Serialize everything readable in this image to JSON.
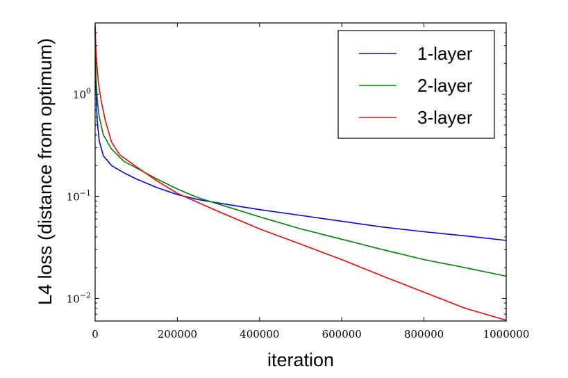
{
  "chart_data": {
    "type": "line",
    "title": "",
    "xlabel": "iteration",
    "ylabel": "L4 loss (distance from optimum)",
    "xlim": [
      0,
      1000000
    ],
    "ylim": [
      0.006,
      5.0
    ],
    "yscale": "log",
    "grid": false,
    "legend_position": "top-right",
    "x_ticks": [
      {
        "value": 0,
        "label": "0"
      },
      {
        "value": 200000,
        "label": "200000"
      },
      {
        "value": 400000,
        "label": "400000"
      },
      {
        "value": 600000,
        "label": "600000"
      },
      {
        "value": 800000,
        "label": "800000"
      },
      {
        "value": 1000000,
        "label": "1000000"
      }
    ],
    "y_ticks": [
      {
        "value": 0.01,
        "base": "10",
        "exp": "−2"
      },
      {
        "value": 0.1,
        "base": "10",
        "exp": "−1"
      },
      {
        "value": 1,
        "base": "10",
        "exp": "0"
      }
    ],
    "series": [
      {
        "name": "1-layer",
        "color": "#0000ff",
        "x": [
          0,
          2000,
          5000,
          10000,
          20000,
          40000,
          70000,
          100000,
          150000,
          200000,
          250000,
          300000,
          400000,
          500000,
          600000,
          700000,
          800000,
          900000,
          1000000
        ],
        "y": [
          4.5,
          1.2,
          0.55,
          0.35,
          0.25,
          0.2,
          0.17,
          0.148,
          0.122,
          0.104,
          0.093,
          0.086,
          0.074,
          0.065,
          0.057,
          0.05,
          0.045,
          0.041,
          0.037
        ]
      },
      {
        "name": "2-layer",
        "color": "#008000",
        "x": [
          0,
          2000,
          5000,
          10000,
          20000,
          40000,
          70000,
          100000,
          150000,
          200000,
          250000,
          300000,
          400000,
          500000,
          600000,
          700000,
          800000,
          900000,
          1000000
        ],
        "y": [
          4.5,
          1.5,
          0.9,
          0.6,
          0.4,
          0.29,
          0.22,
          0.19,
          0.148,
          0.118,
          0.097,
          0.084,
          0.063,
          0.048,
          0.038,
          0.03,
          0.024,
          0.02,
          0.0165
        ]
      },
      {
        "name": "3-layer",
        "color": "#ff0000",
        "x": [
          0,
          1500,
          4000,
          8000,
          15000,
          25000,
          40000,
          60000,
          100000,
          150000,
          200000,
          250000,
          300000,
          400000,
          500000,
          600000,
          700000,
          800000,
          900000,
          1000000
        ],
        "y": [
          4.8,
          3.0,
          2.0,
          1.3,
          0.85,
          0.55,
          0.34,
          0.255,
          0.195,
          0.142,
          0.107,
          0.087,
          0.071,
          0.048,
          0.034,
          0.024,
          0.0165,
          0.0115,
          0.008,
          0.0061
        ]
      }
    ]
  }
}
